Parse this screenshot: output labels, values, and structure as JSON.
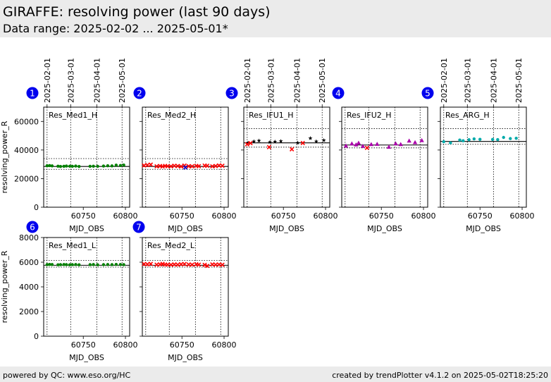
{
  "header": {
    "title": "GIRAFFE: resolving power (last 90 days)",
    "subtitle": "Data range: 2025-02-02 ... 2025-05-01*"
  },
  "footer": {
    "left": "powered by QC: www.eso.org/HC",
    "right": "created by trendPlotter v4.1.2 on 2025-05-02T18:25:20"
  },
  "chart_data": {
    "type": "scatter",
    "xlabel": "MJD_OBS",
    "ylabel": "resolving_power_R",
    "x_ticks": [
      60750,
      60800
    ],
    "date_ticks": [
      "2025-02-01",
      "2025-03-01",
      "2025-04-01",
      "2025-05-01"
    ],
    "date_tick_mjd": [
      60707,
      60735,
      60766,
      60796
    ],
    "xlim": [
      60703,
      60805
    ],
    "panels": [
      {
        "number": "1",
        "label": "Res_Med1_H",
        "color": "#008000",
        "marker": "dot",
        "ylim": [
          0,
          70000
        ],
        "yticks": [
          0,
          20000,
          40000,
          60000
        ],
        "ref_line": 28500,
        "ref_band": [
          26500,
          34000
        ],
        "x": [
          60707,
          60710,
          60713,
          60720,
          60723,
          60727,
          60730,
          60734,
          60737,
          60741,
          60745,
          60758,
          60762,
          60767,
          60774,
          60779,
          60784,
          60789,
          60794,
          60798
        ],
        "y": [
          29000,
          29100,
          28900,
          28700,
          28500,
          28600,
          28800,
          28700,
          28600,
          28800,
          28500,
          28600,
          28700,
          28600,
          28800,
          29000,
          28900,
          29400,
          29200,
          29500
        ]
      },
      {
        "number": "2",
        "label": "Res_Med2_H",
        "color": "#ff0000",
        "marker": "x",
        "ylim": [
          0,
          70000
        ],
        "yticks": [
          0,
          20000,
          40000,
          60000
        ],
        "ref_line": 28500,
        "ref_band": [
          26500,
          34000
        ],
        "x": [
          60705,
          60709,
          60713,
          60720,
          60724,
          60727,
          60730,
          60733,
          60737,
          60741,
          60745,
          60749,
          60753,
          60758,
          60762,
          60767,
          60770,
          60777,
          60780,
          60786,
          60790,
          60794,
          60798
        ],
        "y": [
          29200,
          29500,
          29800,
          28600,
          28800,
          28500,
          28900,
          28700,
          28600,
          29000,
          28800,
          28500,
          29100,
          28700,
          28600,
          28900,
          28700,
          29100,
          29000,
          28600,
          28800,
          29200,
          29000
        ],
        "extra_points": [
          {
            "x": 60754,
            "y": 27800,
            "color": "#0000cc"
          }
        ]
      },
      {
        "number": "3",
        "label": "Res_IFU1_H",
        "color": "#000000",
        "marker": "star",
        "ylim": [
          0,
          70000
        ],
        "yticks": [
          0,
          20000,
          40000,
          60000
        ],
        "ref_line": 45000,
        "ref_band": [
          42000,
          55000
        ],
        "x": [
          60708,
          60715,
          60721,
          60734,
          60740,
          60747,
          60767,
          60782,
          60789,
          60798
        ],
        "y": [
          45000,
          46000,
          46500,
          45500,
          45800,
          46200,
          45000,
          48200,
          46000,
          46800
        ],
        "extra_points": [
          {
            "x": 60707,
            "y": 44000,
            "color": "#ff0000"
          },
          {
            "x": 60711,
            "y": 44800,
            "color": "#ff0000"
          },
          {
            "x": 60733,
            "y": 42000,
            "color": "#ff0000"
          },
          {
            "x": 60760,
            "y": 40500,
            "color": "#ff0000"
          },
          {
            "x": 60773,
            "y": 44900,
            "color": "#ff0000"
          }
        ]
      },
      {
        "number": "4",
        "label": "Res_IFU2_H",
        "color": "#aa00aa",
        "marker": "triangle",
        "ylim": [
          0,
          70000
        ],
        "yticks": [
          0,
          20000,
          40000,
          60000
        ],
        "ref_line": 43500,
        "ref_band": [
          41500,
          55000
        ],
        "x": [
          60708,
          60715,
          60720,
          60723,
          60728,
          60738,
          60745,
          60759,
          60767,
          60773,
          60783,
          60790,
          60798
        ],
        "y": [
          43000,
          44500,
          43800,
          45000,
          42800,
          44000,
          44200,
          42200,
          44600,
          44000,
          46500,
          45400,
          46800
        ],
        "extra_points": [
          {
            "x": 60733,
            "y": 41500,
            "color": "#ff0000"
          }
        ]
      },
      {
        "number": "5",
        "label": "Res_ARG_H",
        "color": "#00aaaa",
        "marker": "dot",
        "ylim": [
          0,
          70000
        ],
        "yticks": [
          0,
          20000,
          40000,
          60000
        ],
        "ref_line": 46000,
        "ref_band": [
          44000,
          55000
        ],
        "x": [
          60707,
          60715,
          60726,
          60730,
          60737,
          60743,
          60750,
          60765,
          60771,
          60778,
          60786,
          60793
        ],
        "y": [
          45800,
          45000,
          47000,
          46500,
          47200,
          47800,
          47500,
          47400,
          47300,
          48800,
          48000,
          48200
        ]
      },
      {
        "number": "6",
        "label": "Res_Med1_L",
        "color": "#008000",
        "marker": "dot",
        "ylim": [
          0,
          8000
        ],
        "yticks": [
          0,
          2000,
          4000,
          6000,
          8000
        ],
        "ref_line": 5750,
        "ref_band": [
          5600,
          6150
        ],
        "x": [
          60707,
          60710,
          60713,
          60720,
          60723,
          60727,
          60730,
          60734,
          60737,
          60741,
          60745,
          60758,
          60762,
          60767,
          60774,
          60779,
          60784,
          60789,
          60794,
          60798
        ],
        "y": [
          5800,
          5820,
          5810,
          5790,
          5800,
          5810,
          5800,
          5790,
          5800,
          5810,
          5790,
          5800,
          5810,
          5790,
          5800,
          5810,
          5800,
          5820,
          5810,
          5800
        ]
      },
      {
        "number": "7",
        "label": "Res_Med2_L",
        "color": "#ff0000",
        "marker": "x",
        "ylim": [
          0,
          8000
        ],
        "yticks": [
          0,
          2000,
          4000,
          6000,
          8000
        ],
        "ref_line": 5750,
        "ref_band": [
          5600,
          6150
        ],
        "x": [
          60705,
          60709,
          60713,
          60720,
          60724,
          60727,
          60730,
          60733,
          60737,
          60741,
          60745,
          60749,
          60753,
          60758,
          60762,
          60767,
          60770,
          60777,
          60780,
          60786,
          60790,
          60794,
          60798
        ],
        "y": [
          5850,
          5830,
          5860,
          5800,
          5820,
          5860,
          5810,
          5800,
          5790,
          5820,
          5800,
          5830,
          5850,
          5810,
          5800,
          5830,
          5800,
          5780,
          5700,
          5820,
          5800,
          5810,
          5790
        ]
      }
    ]
  }
}
